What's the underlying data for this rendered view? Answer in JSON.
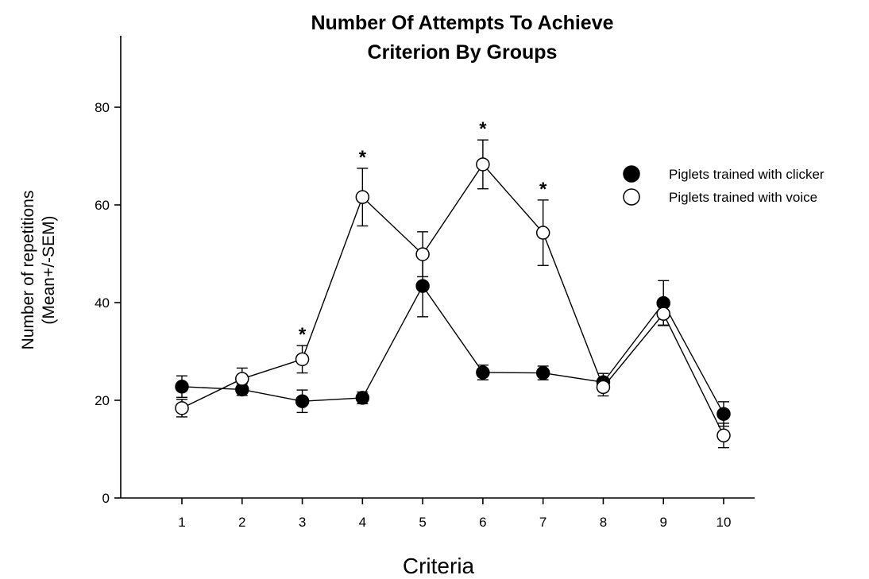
{
  "chart_data": {
    "type": "line",
    "title": [
      "Number Of Attempts To Achieve",
      "Criterion By Groups"
    ],
    "xlabel": "Criteria",
    "ylabel": [
      "Number of repetitions",
      "(Mean+/-SEM)"
    ],
    "x": [
      1,
      2,
      3,
      4,
      5,
      6,
      7,
      8,
      9,
      10
    ],
    "xlim": [
      0,
      10.5
    ],
    "ylim": [
      0,
      95
    ],
    "yticks": [
      0,
      20,
      40,
      60,
      80
    ],
    "grid": false,
    "legend_position": "right",
    "series": [
      {
        "name": "Piglets trained with clicker",
        "marker": "filled-circle",
        "color": "#000000",
        "values": [
          22.8,
          22.2,
          19.8,
          20.5,
          43.4,
          25.7,
          25.6,
          23.7,
          39.9,
          17.2
        ],
        "sem": [
          2.2,
          1.2,
          2.3,
          1.2,
          6.3,
          1.5,
          1.4,
          1.8,
          4.6,
          2.5
        ]
      },
      {
        "name": "Piglets trained with voice",
        "marker": "open-circle",
        "color": "#000000",
        "values": [
          18.4,
          24.4,
          28.4,
          61.6,
          49.9,
          68.3,
          54.3,
          22.7,
          37.7,
          12.8
        ],
        "sem": [
          1.8,
          2.2,
          2.8,
          5.9,
          4.6,
          5.0,
          6.7,
          1.8,
          2.3,
          2.5
        ]
      }
    ],
    "significance": {
      "symbol": "*",
      "x": [
        3,
        4,
        6,
        7
      ]
    }
  }
}
